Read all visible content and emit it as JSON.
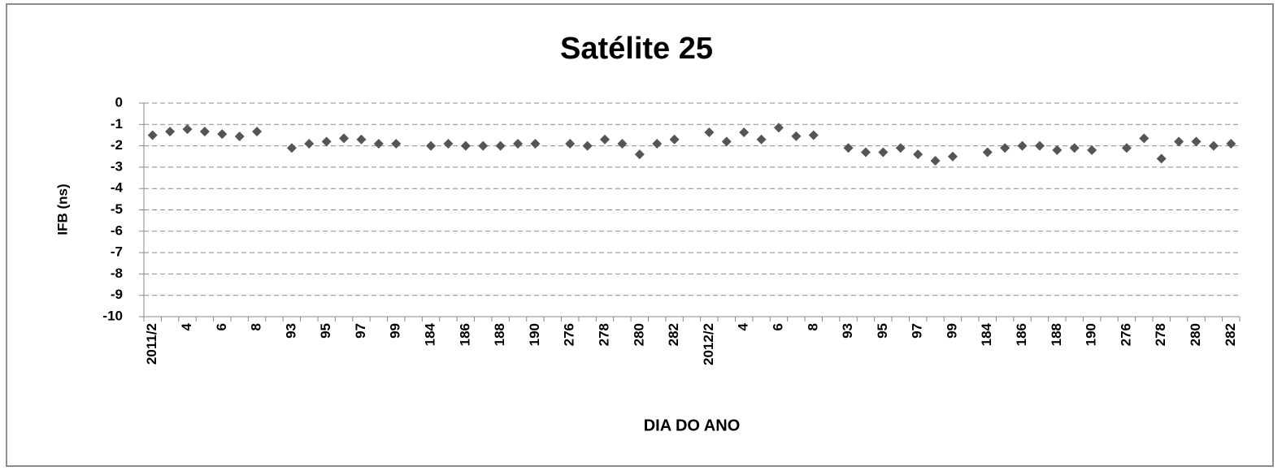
{
  "chart_data": {
    "type": "line",
    "title": "Satélite 25",
    "xlabel": "DIA DO ANO",
    "ylabel": "IFB (ns)",
    "categories": [
      "2011/2",
      null,
      "4",
      null,
      "6",
      null,
      "8",
      null,
      "93",
      null,
      "95",
      null,
      "97",
      null,
      "99",
      null,
      "184",
      null,
      "186",
      null,
      "188",
      null,
      "190",
      null,
      "276",
      null,
      "278",
      null,
      "280",
      null,
      "282",
      null,
      "2012/2",
      null,
      "4",
      null,
      "6",
      null,
      "8",
      null,
      "93",
      null,
      "95",
      null,
      "97",
      null,
      "99",
      null,
      "184",
      null,
      "186",
      null,
      "188",
      null,
      "190",
      null,
      "276",
      null,
      "278",
      null,
      "280",
      null,
      "282"
    ],
    "values": [
      -1.5,
      -1.33,
      -1.22,
      -1.33,
      -1.45,
      -1.56,
      -1.33,
      null,
      -2.1,
      -1.9,
      -1.8,
      -1.65,
      -1.7,
      -1.9,
      -1.9,
      null,
      -2.0,
      -1.9,
      -2.0,
      -2.0,
      -2.0,
      -1.9,
      -1.9,
      null,
      -1.9,
      -2.0,
      -1.7,
      -1.9,
      -2.4,
      -1.9,
      -1.7,
      null,
      -1.37,
      -1.8,
      -1.37,
      -1.7,
      -1.15,
      -1.55,
      -1.5,
      null,
      -2.1,
      -2.3,
      -2.3,
      -2.1,
      -2.4,
      -2.7,
      -2.5,
      null,
      -2.3,
      -2.1,
      -2.0,
      -2.0,
      -2.2,
      -2.1,
      -2.2,
      null,
      -2.1,
      -1.65,
      -2.6,
      -1.8,
      -1.8,
      -2.0,
      -1.9
    ],
    "color": "#555555",
    "show_lines": false,
    "ylim": [
      -10,
      0
    ],
    "yticks": [
      0,
      -1,
      -2,
      -3,
      -4,
      -5,
      -6,
      -7,
      -8,
      -9,
      -10
    ],
    "grid": true
  }
}
